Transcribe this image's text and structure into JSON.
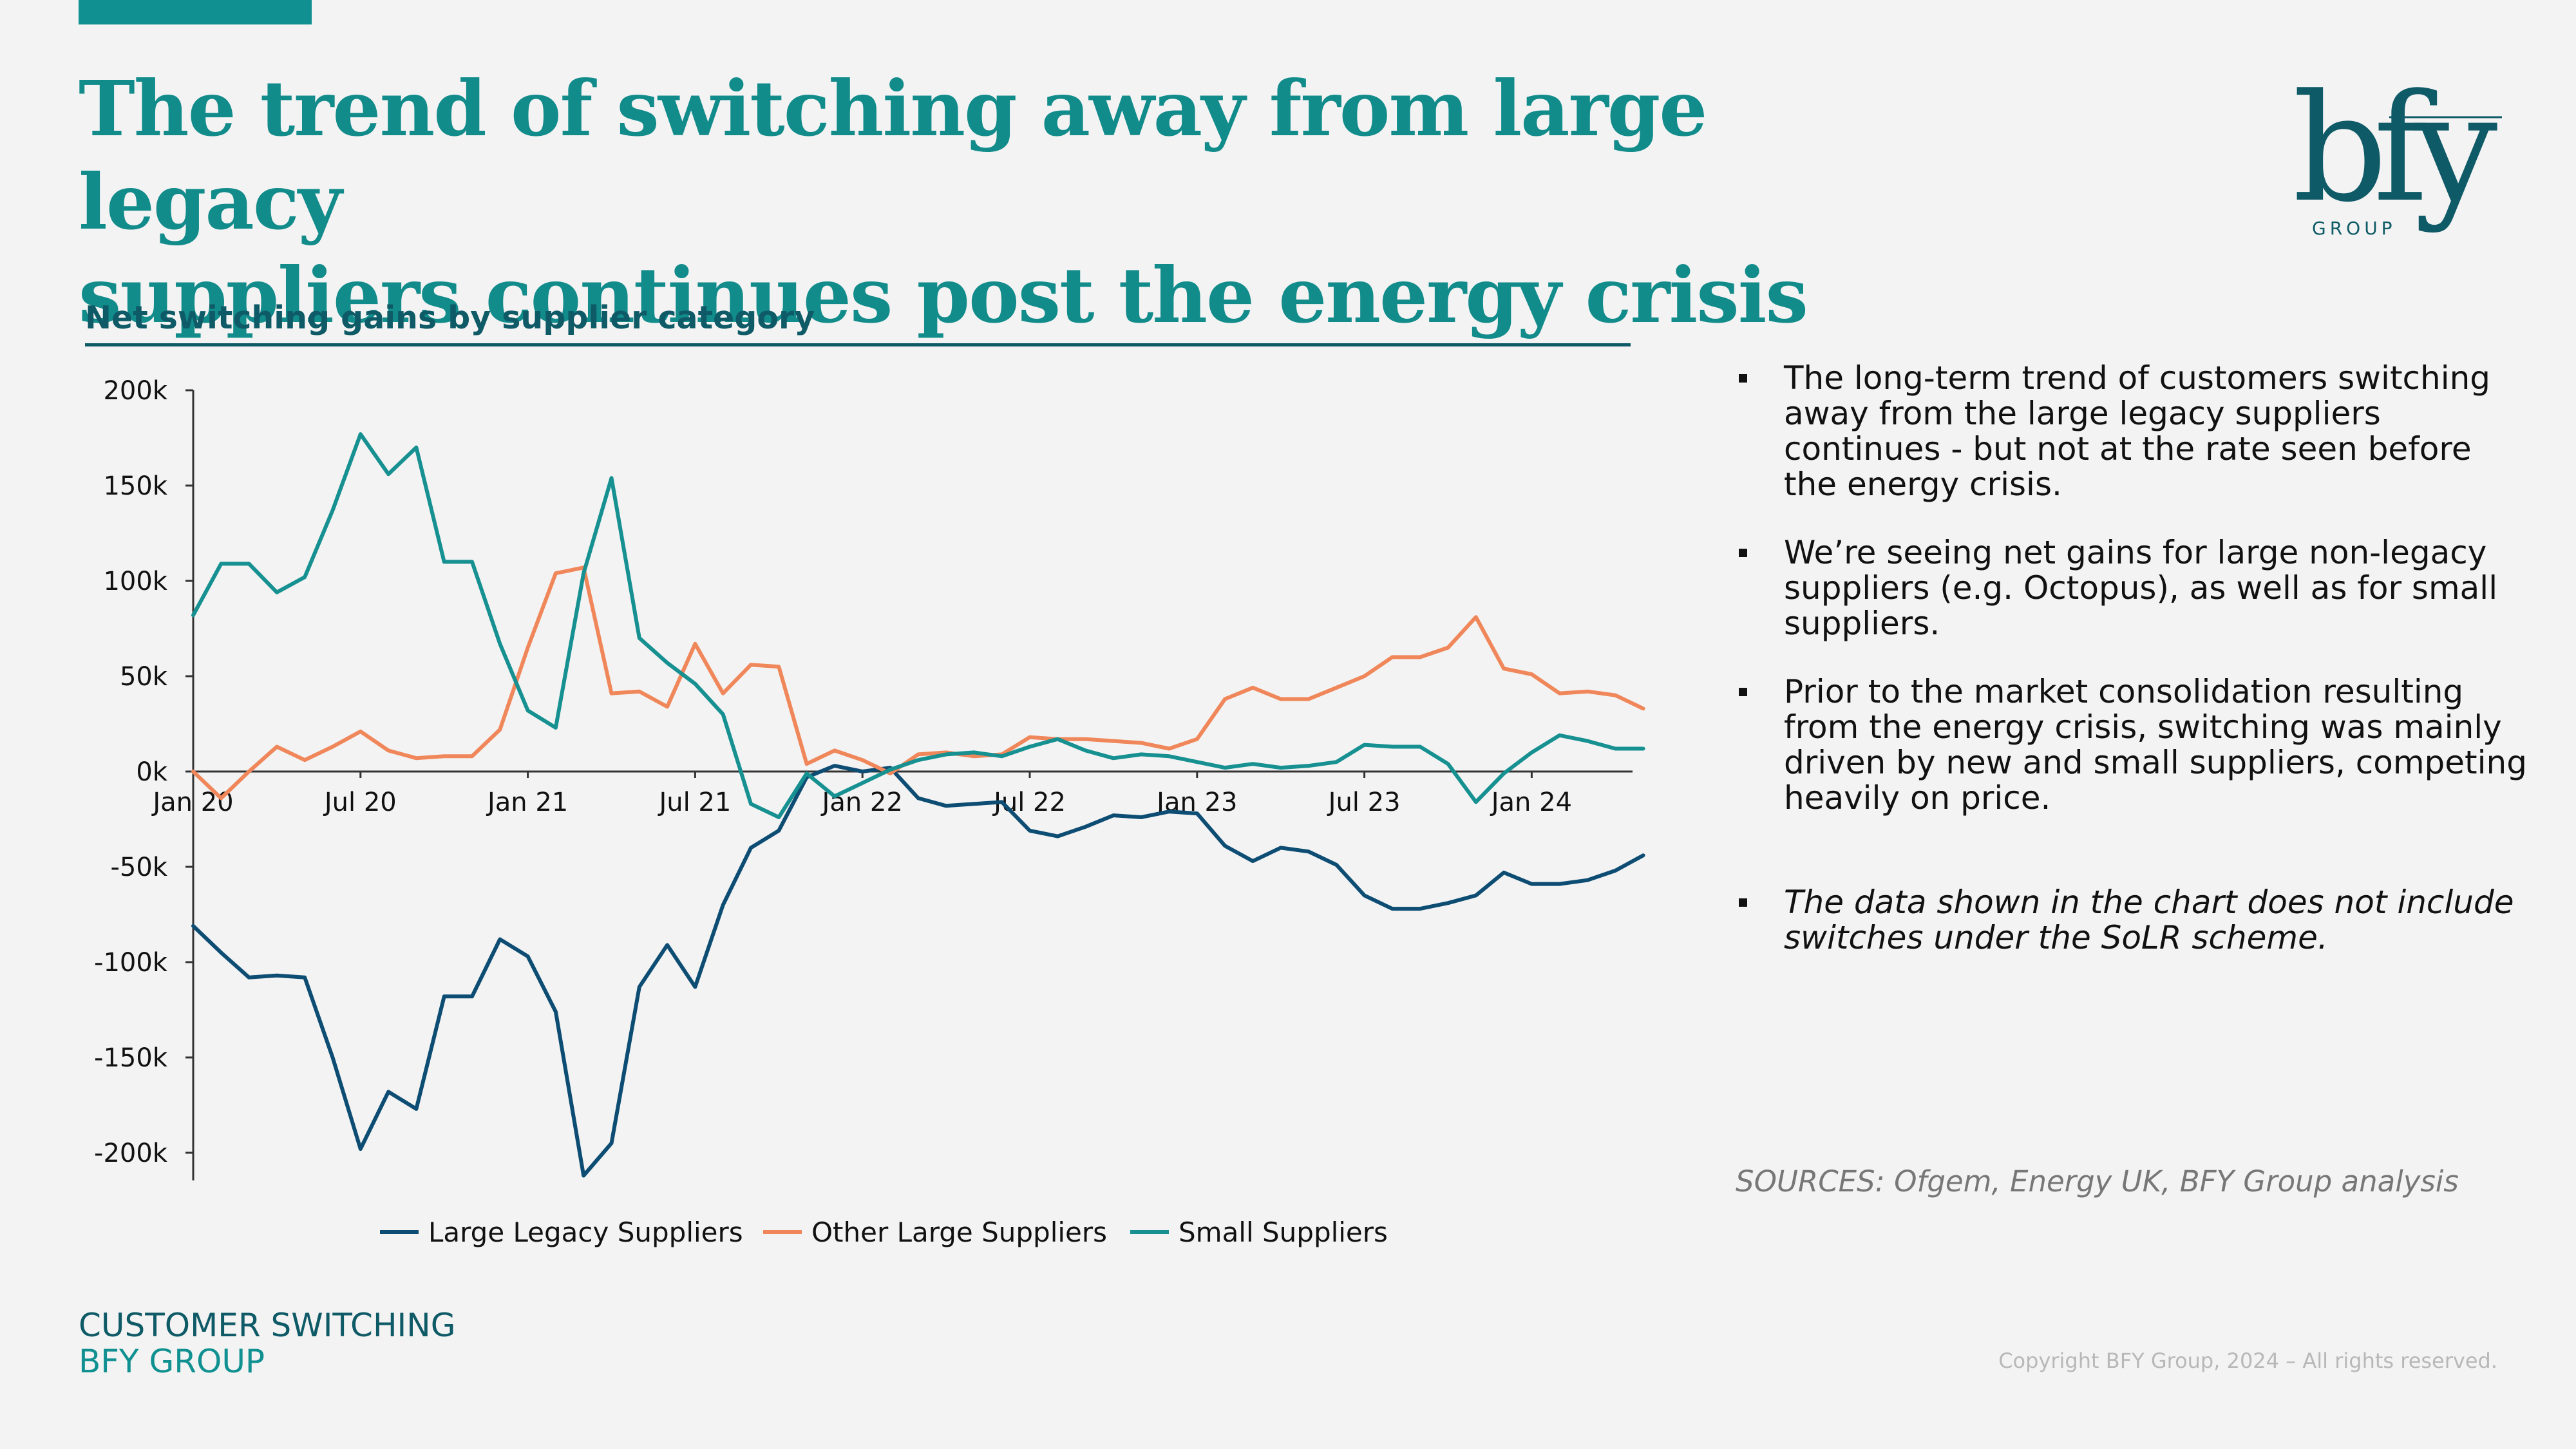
{
  "title_lines": [
    "The trend of switching away from large legacy",
    "suppliers continues post the energy crisis"
  ],
  "logo": {
    "text": "bfy",
    "sub": "GROUP"
  },
  "chart_title": "Net switching gains by supplier category",
  "bullets": [
    "The long-term trend of customers switching away from the large legacy suppliers continues - but not at the rate seen before the energy crisis.",
    "We’re seeing net gains for large non-legacy suppliers (e.g. Octopus), as well as for small suppliers.",
    "Prior to the market consolidation resulting from the energy crisis, switching was mainly driven by new and small suppliers, competing heavily on price.",
    "The data shown in the chart does not include switches under the SoLR scheme."
  ],
  "sources": "SOURCES: Ofgem, Energy UK, BFY Group analysis",
  "footer": {
    "section": "CUSTOMER SWITCHING",
    "org": "BFY GROUP"
  },
  "copyright": "Copyright BFY Group, 2024 – All rights reserved.",
  "colors": {
    "accent": "#109090",
    "title": "#128b8b",
    "dark_teal": "#0e5a66",
    "large_legacy": "#0e4d73",
    "other_large": "#f0875a",
    "small": "#169090"
  },
  "chart_data": {
    "type": "line",
    "x_start": "Jan 20",
    "x_ticks": [
      "Jan 20",
      "Jul 20",
      "Jan 21",
      "Jul 21",
      "Jan 22",
      "Jul 22",
      "Jan 23",
      "Jul 23",
      "Jan 24"
    ],
    "y_ticks": [
      "200k",
      "150k",
      "100k",
      "50k",
      "0k",
      "-50k",
      "-100k",
      "-150k",
      "-200k"
    ],
    "ylim": [
      -215000,
      200000
    ],
    "grid": false,
    "legend_position": "bottom",
    "series": [
      {
        "name": "Large Legacy Suppliers",
        "color": "#0e4d73",
        "values": [
          -81000,
          -95000,
          -108000,
          -107000,
          -108000,
          -150000,
          -198000,
          -168000,
          -177000,
          -118000,
          -118000,
          -88000,
          -97000,
          -126000,
          -212000,
          -195000,
          -113000,
          -91000,
          -113000,
          -70000,
          -40000,
          -31000,
          -3000,
          3000,
          0,
          2000,
          -14000,
          -18000,
          -17000,
          -16000,
          -31000,
          -34000,
          -29000,
          -23000,
          -24000,
          -21000,
          -22000,
          -39000,
          -47000,
          -40000,
          -42000,
          -49000,
          -65000,
          -72000,
          -72000,
          -69000,
          -65000,
          -53000,
          -59000,
          -59000,
          -57000,
          -52000,
          -44000
        ]
      },
      {
        "name": "Other Large Suppliers",
        "color": "#f0875a",
        "values": [
          0,
          -14000,
          0,
          13000,
          6000,
          13000,
          21000,
          11000,
          7000,
          8000,
          8000,
          22000,
          65000,
          104000,
          107000,
          41000,
          42000,
          34000,
          67000,
          41000,
          56000,
          55000,
          4000,
          11000,
          6000,
          -1000,
          9000,
          10000,
          8000,
          9000,
          18000,
          17000,
          17000,
          16000,
          15000,
          12000,
          17000,
          38000,
          44000,
          38000,
          38000,
          44000,
          50000,
          60000,
          60000,
          65000,
          81000,
          54000,
          51000,
          41000,
          42000,
          40000,
          33000
        ]
      },
      {
        "name": "Small Suppliers",
        "color": "#169090",
        "values": [
          82000,
          109000,
          109000,
          94000,
          102000,
          137000,
          177000,
          156000,
          170000,
          110000,
          110000,
          67000,
          32000,
          23000,
          104000,
          154000,
          70000,
          57000,
          46000,
          30000,
          -17000,
          -24000,
          -1000,
          -13000,
          -6000,
          1000,
          6000,
          9000,
          10000,
          8000,
          13000,
          17000,
          11000,
          7000,
          9000,
          8000,
          5000,
          2000,
          4000,
          2000,
          3000,
          5000,
          14000,
          13000,
          13000,
          4000,
          -16000,
          -1000,
          10000,
          19000,
          16000,
          12000,
          12000
        ]
      }
    ]
  }
}
